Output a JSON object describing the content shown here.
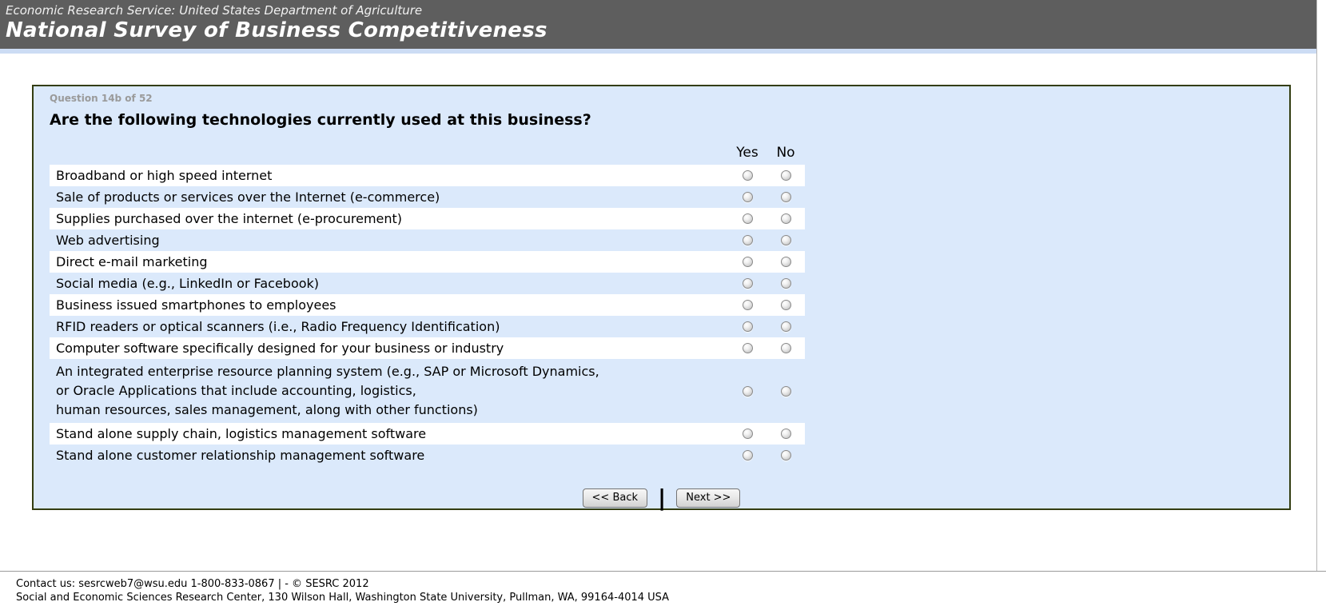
{
  "header": {
    "agency": "Economic Research Service: United States Department of Agriculture",
    "title": "National Survey of Business Competitiveness"
  },
  "question": {
    "progress": "Question 14b of 52",
    "text": "Are the following technologies currently used at this business?",
    "columns": {
      "yes": "Yes",
      "no": "No"
    },
    "items": [
      {
        "label": "Broadband or high speed internet",
        "value": null
      },
      {
        "label": "Sale of products or services over the Internet (e-commerce)",
        "value": null
      },
      {
        "label": "Supplies purchased over the internet (e-procurement)",
        "value": null
      },
      {
        "label": "Web advertising",
        "value": null
      },
      {
        "label": "Direct e-mail marketing",
        "value": null
      },
      {
        "label": "Social media (e.g., LinkedIn or Facebook)",
        "value": null
      },
      {
        "label": "Business issued smartphones to employees",
        "value": null
      },
      {
        "label": "RFID readers or optical scanners (i.e., Radio Frequency Identification)",
        "value": null
      },
      {
        "label": "Computer software specifically designed for your business or industry",
        "value": null
      },
      {
        "label": "An integrated enterprise resource planning system (e.g., SAP or Microsoft Dynamics,\nor Oracle Applications that include accounting, logistics,\nhuman resources, sales management, along with other functions)",
        "value": null
      },
      {
        "label": "Stand alone supply chain, logistics management software",
        "value": null
      },
      {
        "label": "Stand alone customer relationship management software",
        "value": null
      }
    ]
  },
  "buttons": {
    "back": "<< Back",
    "separator": "|",
    "next": "Next >>"
  },
  "footer": {
    "line1": "Contact us: sesrcweb7@wsu.edu 1-800-833-0867 | - © SESRC 2012",
    "line2": "Social and Economic Sciences Research Center, 130 Wilson Hall, Washington State University, Pullman, WA, 99164-4014 USA"
  },
  "colors": {
    "header_bg": "#5e5e5e",
    "header_strip": "#ccdcf4",
    "panel_bg": "#dbe9fb",
    "panel_border": "#333d11",
    "row_white": "#ffffff"
  }
}
